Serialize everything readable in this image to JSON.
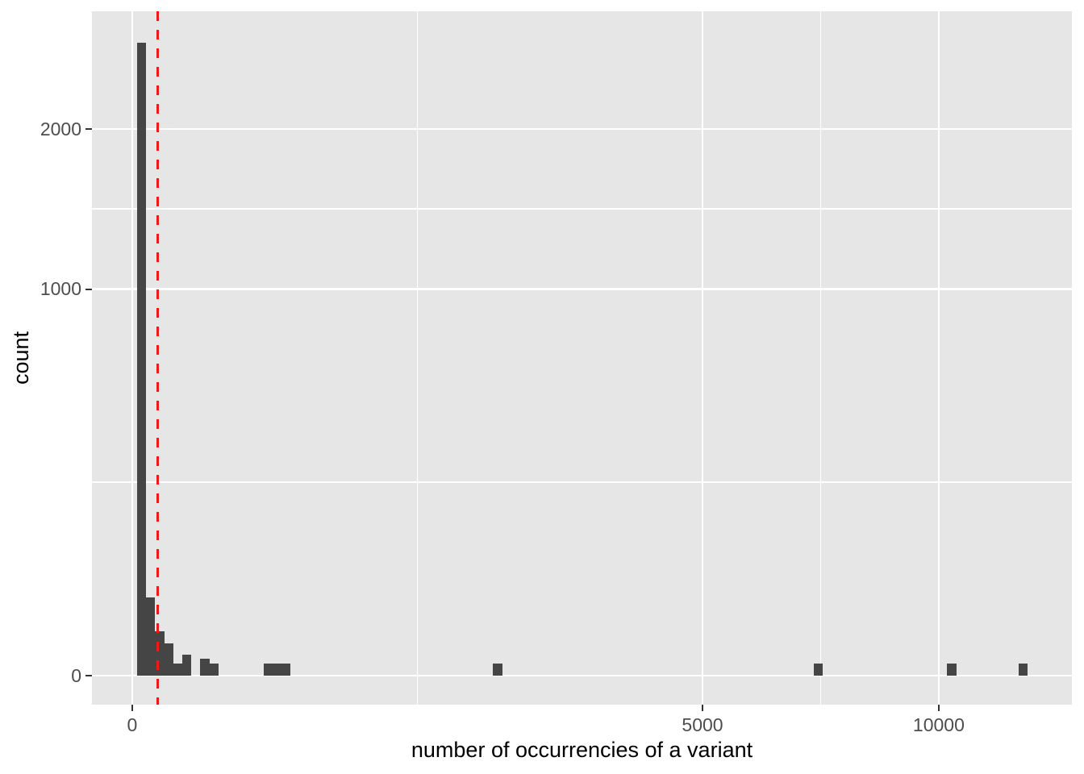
{
  "chart_data": {
    "type": "bar",
    "subtype": "histogram",
    "title": "",
    "xlabel": "number of occurrencies of a variant",
    "ylabel": "count",
    "x_scale": "sqrt",
    "y_scale": "sqrt",
    "x_ticks": {
      "values": [
        0,
        5000,
        10000
      ],
      "labels": [
        "0",
        "5000",
        "10000"
      ]
    },
    "y_ticks": {
      "values": [
        0,
        1000,
        2000
      ],
      "labels": [
        "0",
        "1000",
        "2000"
      ]
    },
    "x_minor_gridlines": [
      1250,
      7286
    ],
    "y_minor_gridlines": [
      250,
      1457
    ],
    "x_range": [
      -250,
      13600
    ],
    "y_range": [
      0,
      2950
    ],
    "grid": "on",
    "legend": "none",
    "bins": [
      {
        "x0": 0.4,
        "x1": 3.0,
        "count": 2680
      },
      {
        "x0": 3.0,
        "x1": 8.1,
        "count": 41
      },
      {
        "x0": 8.1,
        "x1": 15.8,
        "count": 13
      },
      {
        "x0": 15.8,
        "x1": 25.9,
        "count": 7
      },
      {
        "x0": 25.9,
        "x1": 38.6,
        "count": 1
      },
      {
        "x0": 38.6,
        "x1": 53.7,
        "count": 3
      },
      {
        "x0": 71.4,
        "x1": 91.6,
        "count": 2
      },
      {
        "x0": 91.6,
        "x1": 114.3,
        "count": 1
      },
      {
        "x0": 265.4,
        "x1": 303.1,
        "count": 1
      },
      {
        "x0": 303.1,
        "x1": 343.4,
        "count": 1
      },
      {
        "x0": 343.4,
        "x1": 386.2,
        "count": 1
      },
      {
        "x0": 2002,
        "x1": 2107,
        "count": 1
      },
      {
        "x0": 7140,
        "x1": 7331,
        "count": 1
      },
      {
        "x0": 10209,
        "x1": 10437,
        "count": 1
      },
      {
        "x0": 12074,
        "x1": 12321,
        "count": 1
      }
    ],
    "reference_line": {
      "orientation": "vertical",
      "value": 10,
      "style": "dashed",
      "color": "#f01919"
    },
    "colors": {
      "bar": "#454545",
      "panel_background": "#e6e6e6",
      "figure_background": "#ffffff",
      "gridline": "#ffffff",
      "tick_mark": "#333333",
      "tick_label": "#4d4d4d",
      "axis_title": "#000000"
    }
  }
}
